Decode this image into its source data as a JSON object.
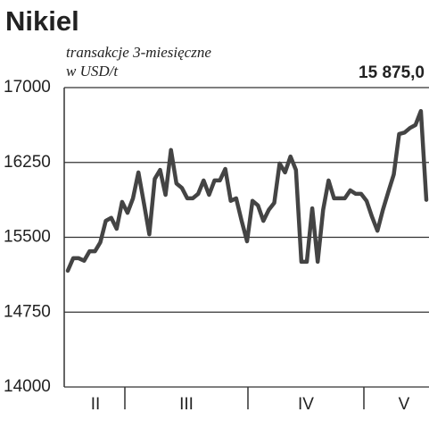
{
  "chart_data": {
    "type": "line",
    "title": "Nikiel",
    "subtitle": [
      "transakcje 3-miesięczne",
      "w USD/t"
    ],
    "last_value_label": "15 875,0",
    "values": [
      15165,
      15290,
      15290,
      15265,
      15360,
      15360,
      15450,
      15665,
      15695,
      15585,
      15855,
      15745,
      15890,
      16150,
      15845,
      15530,
      16085,
      16175,
      15925,
      16375,
      16040,
      15995,
      15890,
      15890,
      15935,
      16070,
      15925,
      16070,
      16070,
      16185,
      15865,
      15890,
      15665,
      15460,
      15865,
      15820,
      15665,
      15775,
      15845,
      16240,
      16150,
      16310,
      16175,
      15255,
      15255,
      15790,
      15255,
      15775,
      16070,
      15890,
      15890,
      15890,
      15970,
      15935,
      15935,
      15865,
      15705,
      15565,
      15775,
      15955,
      16130,
      16535,
      16550,
      16595,
      16625,
      16765,
      15875
    ],
    "color": "#444444",
    "xticklabels": [
      "II",
      "III",
      "IV",
      "V"
    ],
    "ylim": [
      14000,
      17000
    ],
    "yticks": [
      14000,
      14750,
      15500,
      16250,
      17000
    ],
    "grid": true
  }
}
